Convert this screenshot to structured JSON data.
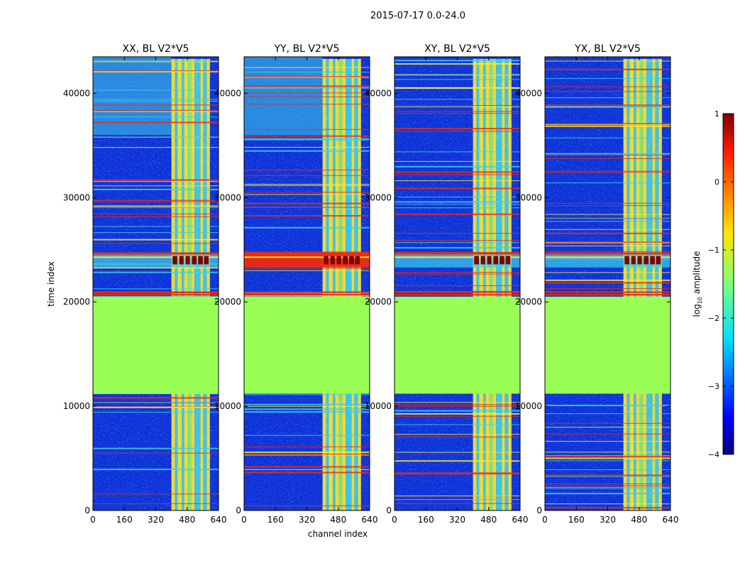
{
  "figure": {
    "suptitle": "2015-07-17 0.0-24.0",
    "xlabel": "channel index",
    "ylabel": "time index"
  },
  "colors": {
    "background_fill": "#99ff55",
    "noise_blue": "#1030d8",
    "band_cyan": "#40d0e8",
    "band_yellow": "#ffe830",
    "band_red": "#ee2b10",
    "deep_red": "#800000"
  },
  "chart_data": {
    "type": "heatmap",
    "xlim": [
      0,
      640
    ],
    "ylim": [
      0,
      43500
    ],
    "xticks": [
      0,
      160,
      320,
      480,
      640
    ],
    "yticks": [
      0,
      10000,
      20000,
      30000,
      40000
    ],
    "panels": [
      {
        "title": "XX, BL V2*V5",
        "ytick_labels": [
          "0",
          "10000",
          "20000",
          "30000",
          "40000"
        ],
        "upper_bright": true,
        "flare_strength": "medium"
      },
      {
        "title": "YY, BL V2*V5",
        "ytick_labels": [
          "0",
          "10000",
          "20000",
          "30000",
          "40000"
        ],
        "upper_bright": true,
        "flare_strength": "strong"
      },
      {
        "title": "XY, BL V2*V5",
        "ytick_labels": [
          "0",
          "10000",
          "20000",
          "30000",
          "40000"
        ],
        "upper_bright": false,
        "flare_strength": "medium"
      },
      {
        "title": "YX, BL V2*V5",
        "ytick_labels": [
          "0",
          "10000",
          "20000",
          "30000",
          "40000"
        ],
        "upper_bright": false,
        "flare_strength": "medium"
      }
    ],
    "flagged_time_range": [
      11200,
      20500
    ],
    "flare_time_range": [
      23300,
      24600
    ],
    "rfi_channel_range": [
      400,
      600
    ],
    "colorbar": {
      "label": "log10 amplitude",
      "label_prefix": "log",
      "label_sub": "10",
      "label_suffix": " amplitude",
      "range": [
        -4,
        1
      ],
      "ticks": [
        1,
        0,
        -1,
        -2,
        -3,
        -4
      ],
      "tick_labels": [
        "1",
        "0",
        "−1",
        "−2",
        "−3",
        "−4"
      ],
      "colormap": "jet"
    }
  }
}
